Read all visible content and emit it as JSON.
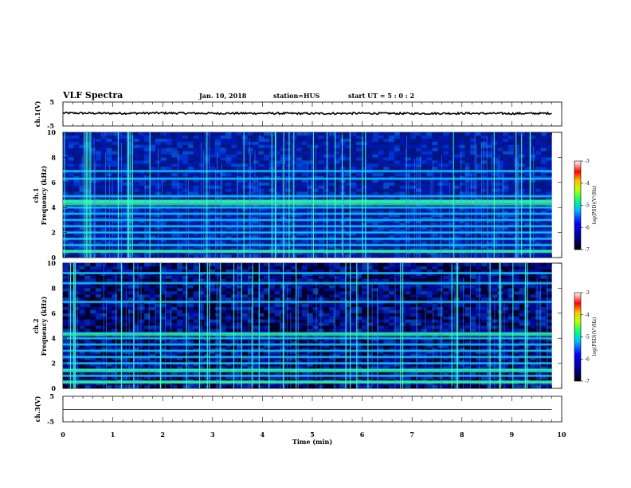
{
  "header": {
    "title": "VLF Spectra",
    "date": "Jan. 10, 2018",
    "station": "station=HUS",
    "start": "start UT = 5 : 0 : 2"
  },
  "chart_data": [
    {
      "type": "line",
      "panel": "ch1-waveform",
      "ylabel": "ch.1(V)",
      "ylim": [
        -5,
        5
      ],
      "yticks": [
        "5",
        "-5"
      ],
      "x": [
        0,
        1,
        2,
        3,
        4,
        5,
        6,
        7,
        8,
        9,
        9.8
      ],
      "y": [
        0.4,
        0.3,
        0.4,
        0.3,
        0.3,
        0.2,
        0.3,
        0.2,
        0.3,
        0.2,
        0.3
      ],
      "color": "#000000"
    },
    {
      "type": "heatmap",
      "panel": "ch1-spectrogram",
      "ylabel": "ch.1",
      "ylabel2": "Frequency (kHz)",
      "ylim": [
        0,
        10
      ],
      "yticks": [
        "0",
        "2",
        "4",
        "6",
        "8",
        "10"
      ],
      "data_xlim": [
        0,
        9.8
      ],
      "bands_khz": [
        0.5,
        1.0,
        1.5,
        2.0,
        2.5,
        3.0,
        3.5,
        4.0,
        4.5,
        4.9,
        6.3,
        6.9
      ],
      "bright_band_khz": [
        4.3,
        4.5,
        0.5
      ],
      "colorbar": {
        "label": "log(PSD)(V²/Hz)",
        "ticks": [
          "-3",
          "-4",
          "-5",
          "-6",
          "-7"
        ],
        "range": [
          -7,
          -3
        ]
      }
    },
    {
      "type": "heatmap",
      "panel": "ch2-spectrogram",
      "ylabel": "ch.2",
      "ylabel2": "Frequency (kHz)",
      "ylim": [
        0,
        10
      ],
      "yticks": [
        "0",
        "2",
        "4",
        "6",
        "8",
        "10"
      ],
      "data_xlim": [
        0,
        9.8
      ],
      "bands_khz": [
        0.5,
        1.0,
        1.5,
        2.0,
        2.5,
        3.0,
        3.5,
        4.0,
        4.4,
        6.9,
        8.4,
        9.2
      ],
      "bright_band_khz": [
        4.3,
        1.4,
        0.5
      ],
      "colorbar": {
        "label": "log(PSD)(V²/Hz)",
        "ticks": [
          "-3",
          "-4",
          "-5",
          "-6",
          "-7"
        ],
        "range": [
          -7,
          -3
        ]
      }
    },
    {
      "type": "line",
      "panel": "ch3-waveform",
      "ylabel": "ch.3(V)",
      "ylim": [
        -5,
        5
      ],
      "yticks": [
        "5",
        "-5"
      ],
      "x": [
        0,
        9.8
      ],
      "y": [
        -0.2,
        -0.2
      ],
      "color": "#000000",
      "xlabel": "Time (min)",
      "xlim": [
        0,
        10
      ],
      "xticks": [
        "0",
        "1",
        "2",
        "3",
        "4",
        "5",
        "6",
        "7",
        "8",
        "9",
        "10"
      ]
    }
  ],
  "colors": {
    "colormap": [
      "#000000",
      "#00007f",
      "#0000ff",
      "#007fff",
      "#00ffff",
      "#7fff7f",
      "#ffff00",
      "#ff7f00",
      "#ff0000",
      "#ffffff"
    ]
  }
}
